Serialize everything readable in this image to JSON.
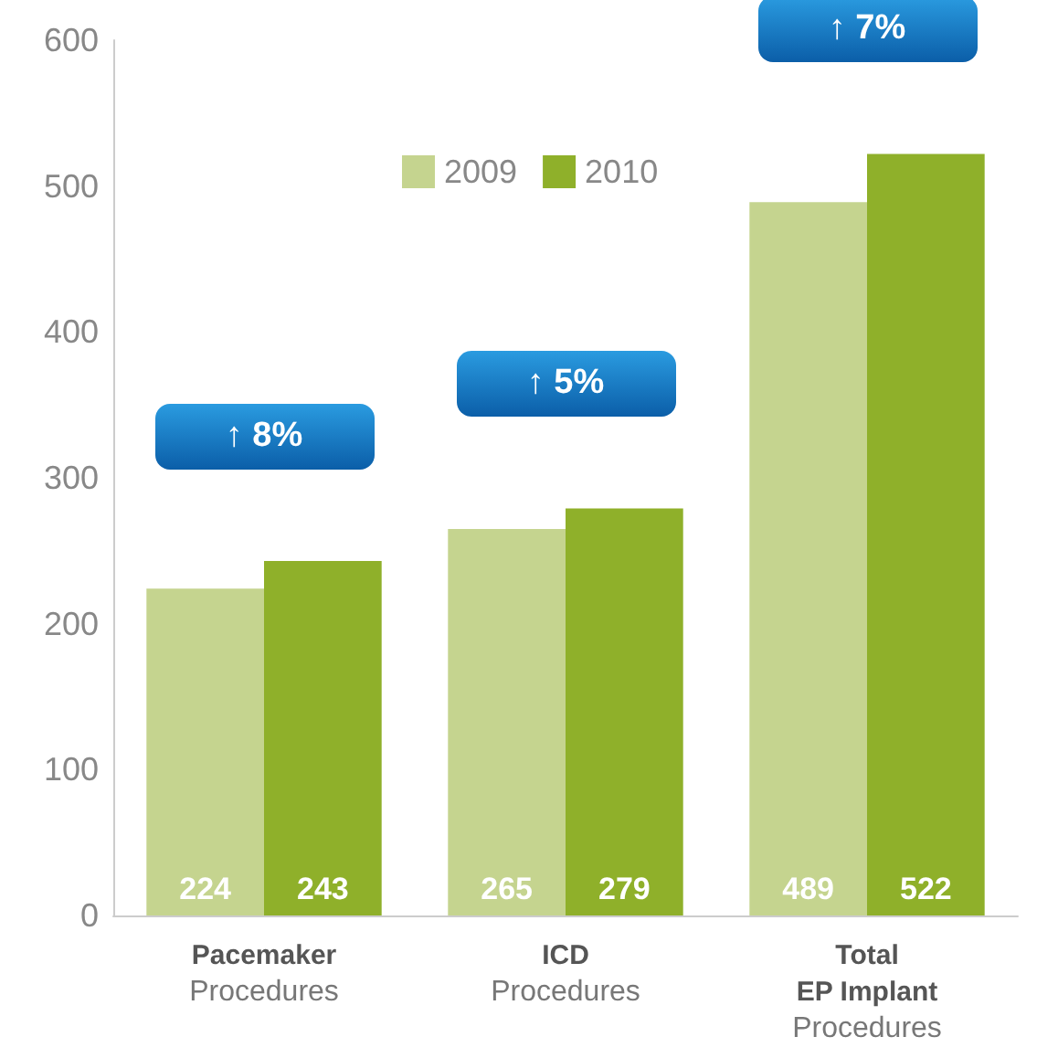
{
  "chart_data": {
    "type": "bar",
    "categories": [
      "Pacemaker\nProcedures",
      "ICD\nProcedures",
      "Total\nEP Implant\nProcedures"
    ],
    "series": [
      {
        "name": "2009",
        "color": "#c5d48f",
        "values": [
          224,
          265,
          489
        ]
      },
      {
        "name": "2010",
        "color": "#8fb02a",
        "values": [
          243,
          279,
          522
        ]
      }
    ],
    "ylim": [
      0,
      600
    ],
    "yticks": [
      0,
      100,
      200,
      300,
      400,
      500,
      600
    ],
    "grid": false,
    "legend": "top",
    "data_labels": true,
    "annotations": [
      "↑ 8%",
      "↑ 5%",
      "↑ 7%"
    ]
  }
}
